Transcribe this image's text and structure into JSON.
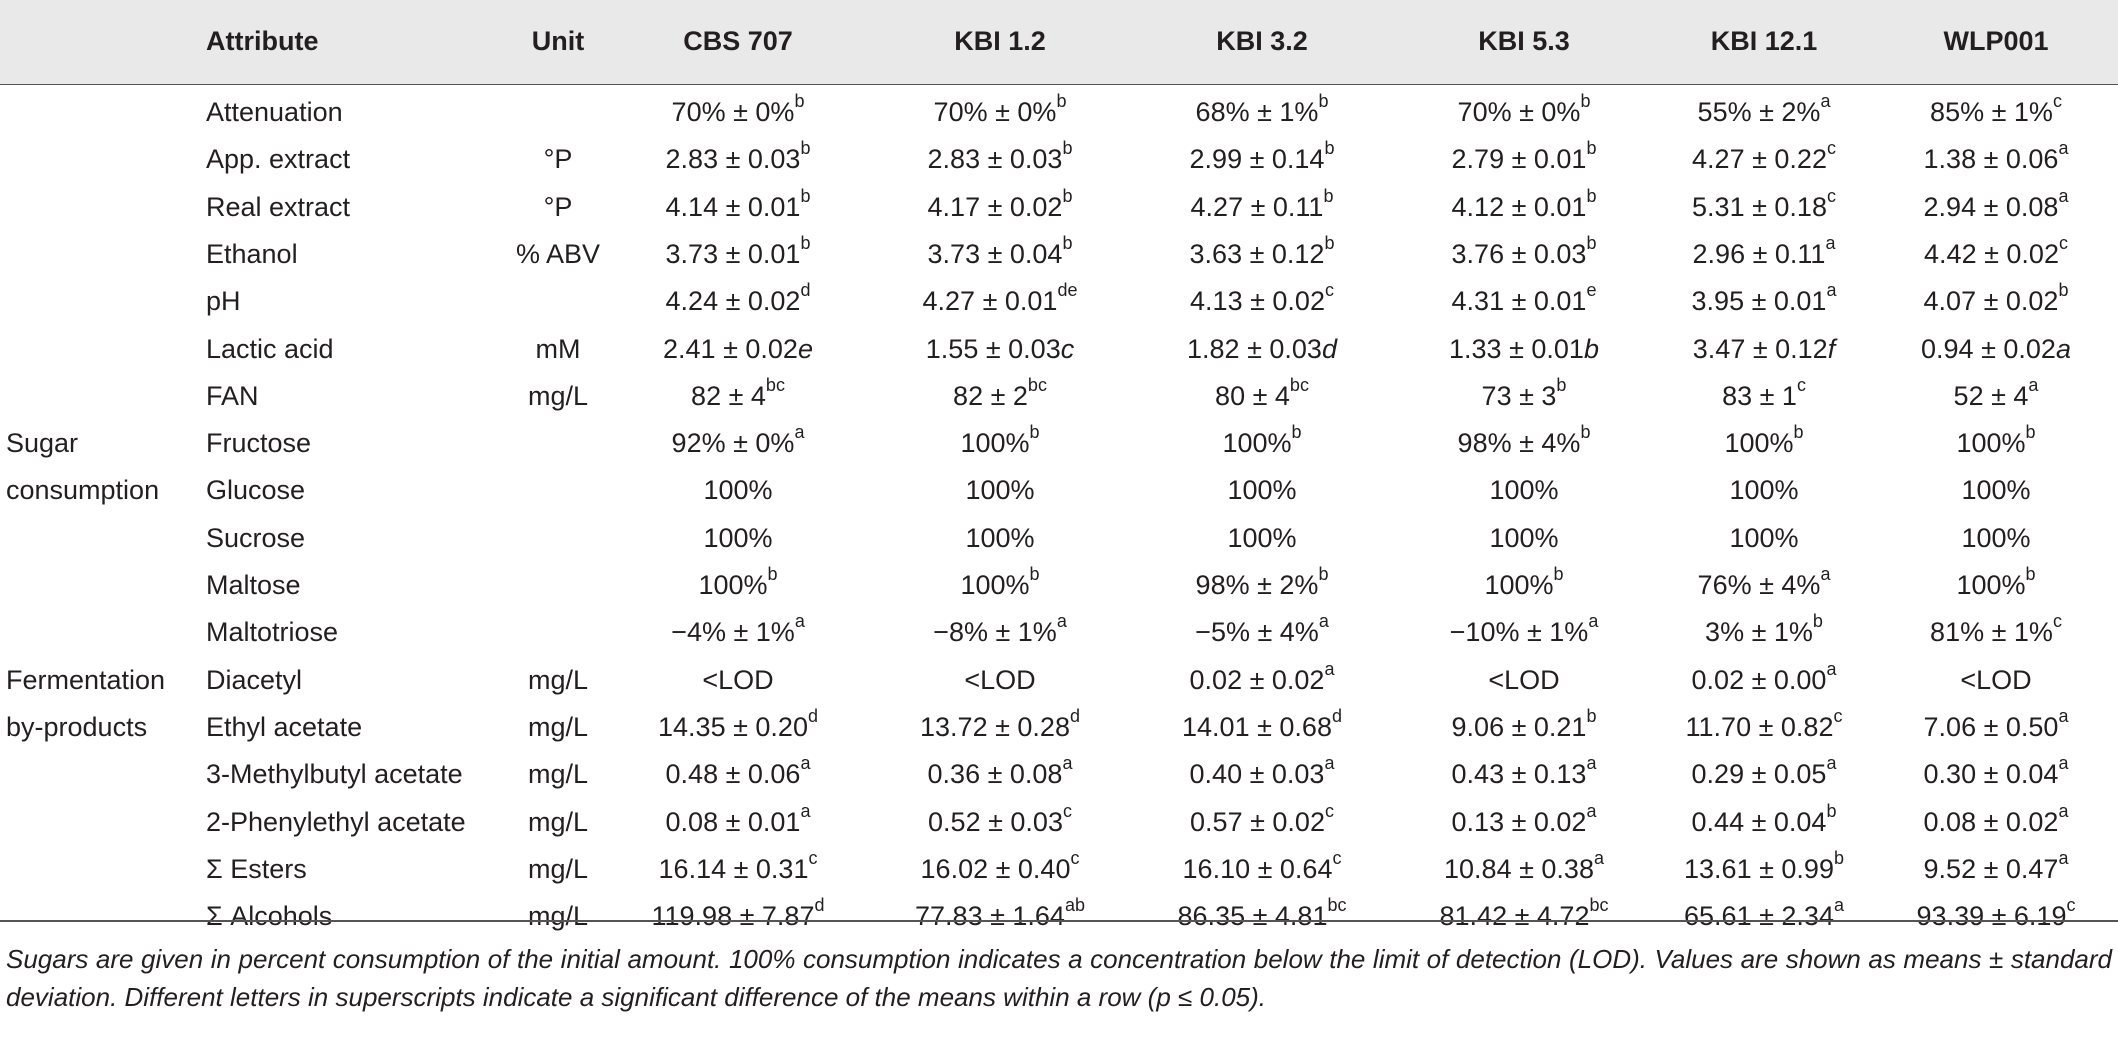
{
  "headers": [
    "Attribute",
    "Unit",
    "CBS 707",
    "KBI 1.2",
    "KBI 3.2",
    "KBI 5.3",
    "KBI 12.1",
    "WLP001"
  ],
  "rows": [
    {
      "group": "",
      "attr": "Attenuation",
      "unit": "",
      "cells": [
        [
          "70% ± 0%",
          "b"
        ],
        [
          "70% ± 0%",
          "b"
        ],
        [
          "68% ± 1%",
          "b"
        ],
        [
          "70% ± 0%",
          "b"
        ],
        [
          "55% ± 2%",
          "a"
        ],
        [
          "85% ± 1%",
          "c"
        ]
      ]
    },
    {
      "group": "",
      "attr": "App. extract",
      "unit": "°P",
      "cells": [
        [
          "2.83 ± 0.03",
          "b"
        ],
        [
          "2.83 ± 0.03",
          "b"
        ],
        [
          "2.99 ± 0.14",
          "b"
        ],
        [
          "2.79 ± 0.01",
          "b"
        ],
        [
          "4.27 ± 0.22",
          "c"
        ],
        [
          "1.38 ± 0.06",
          "a"
        ]
      ]
    },
    {
      "group": "",
      "attr": "Real extract",
      "unit": "°P",
      "cells": [
        [
          "4.14 ± 0.01",
          "b"
        ],
        [
          "4.17 ± 0.02",
          "b"
        ],
        [
          "4.27 ± 0.11",
          "b"
        ],
        [
          "4.12 ± 0.01",
          "b"
        ],
        [
          "5.31 ± 0.18",
          "c"
        ],
        [
          "2.94 ± 0.08",
          "a"
        ]
      ]
    },
    {
      "group": "",
      "attr": "Ethanol",
      "unit": "% ABV",
      "cells": [
        [
          "3.73 ± 0.01",
          "b"
        ],
        [
          "3.73 ± 0.04",
          "b"
        ],
        [
          "3.63 ± 0.12",
          "b"
        ],
        [
          "3.76 ± 0.03",
          "b"
        ],
        [
          "2.96 ± 0.11",
          "a"
        ],
        [
          "4.42 ± 0.02",
          "c"
        ]
      ]
    },
    {
      "group": "",
      "attr": "pH",
      "unit": "",
      "cells": [
        [
          "4.24 ± 0.02",
          "d"
        ],
        [
          "4.27 ± 0.01",
          "de"
        ],
        [
          "4.13 ± 0.02",
          "c"
        ],
        [
          "4.31 ± 0.01",
          "e"
        ],
        [
          "3.95 ± 0.01",
          "a"
        ],
        [
          "4.07 ± 0.02",
          "b"
        ]
      ]
    },
    {
      "group": "",
      "attr": "Lactic acid",
      "unit": "mM",
      "inline": true,
      "cells": [
        [
          "2.41 ± 0.02",
          "e"
        ],
        [
          "1.55 ± 0.03",
          "c"
        ],
        [
          "1.82 ± 0.03",
          "d"
        ],
        [
          "1.33 ± 0.01",
          "b"
        ],
        [
          "3.47 ± 0.12",
          "f"
        ],
        [
          "0.94 ± 0.02",
          "a"
        ]
      ]
    },
    {
      "group": "",
      "attr": "FAN",
      "unit": "mg/L",
      "cells": [
        [
          "82 ± 4",
          "bc"
        ],
        [
          "82 ± 2",
          "bc"
        ],
        [
          "80 ± 4",
          "bc"
        ],
        [
          "73 ± 3",
          "b"
        ],
        [
          "83 ± 1",
          "c"
        ],
        [
          "52 ± 4",
          "a"
        ]
      ]
    },
    {
      "group": "Sugar",
      "attr": "Fructose",
      "unit": "",
      "cells": [
        [
          "92% ± 0%",
          "a"
        ],
        [
          "100%",
          "b"
        ],
        [
          "100%",
          "b"
        ],
        [
          "98% ± 4%",
          "b"
        ],
        [
          "100%",
          "b"
        ],
        [
          "100%",
          "b"
        ]
      ]
    },
    {
      "group": "consumption",
      "attr": "Glucose",
      "unit": "",
      "cells": [
        [
          "100%",
          ""
        ],
        [
          "100%",
          ""
        ],
        [
          "100%",
          ""
        ],
        [
          "100%",
          ""
        ],
        [
          "100%",
          ""
        ],
        [
          "100%",
          ""
        ]
      ]
    },
    {
      "group": "",
      "attr": "Sucrose",
      "unit": "",
      "cells": [
        [
          "100%",
          ""
        ],
        [
          "100%",
          ""
        ],
        [
          "100%",
          ""
        ],
        [
          "100%",
          ""
        ],
        [
          "100%",
          ""
        ],
        [
          "100%",
          ""
        ]
      ]
    },
    {
      "group": "",
      "attr": "Maltose",
      "unit": "",
      "cells": [
        [
          "100%",
          "b"
        ],
        [
          "100%",
          "b"
        ],
        [
          "98% ± 2%",
          "b"
        ],
        [
          "100%",
          "b"
        ],
        [
          "76% ± 4%",
          "a"
        ],
        [
          "100%",
          "b"
        ]
      ]
    },
    {
      "group": "",
      "attr": "Maltotriose",
      "unit": "",
      "cells": [
        [
          "−4% ± 1%",
          "a"
        ],
        [
          "−8% ± 1%",
          "a"
        ],
        [
          "−5% ± 4%",
          "a"
        ],
        [
          "−10% ± 1%",
          "a"
        ],
        [
          "3% ± 1%",
          "b"
        ],
        [
          "81% ± 1%",
          "c"
        ]
      ]
    },
    {
      "group": "Fermentation",
      "attr": "Diacetyl",
      "unit": "mg/L",
      "cells": [
        [
          "<LOD",
          ""
        ],
        [
          "<LOD",
          ""
        ],
        [
          "0.02 ± 0.02",
          "a"
        ],
        [
          "<LOD",
          ""
        ],
        [
          "0.02 ± 0.00",
          "a"
        ],
        [
          "<LOD",
          ""
        ]
      ]
    },
    {
      "group": "by-products",
      "attr": "Ethyl acetate",
      "unit": "mg/L",
      "cells": [
        [
          "14.35 ± 0.20",
          "d"
        ],
        [
          "13.72 ± 0.28",
          "d"
        ],
        [
          "14.01 ± 0.68",
          "d"
        ],
        [
          "9.06 ± 0.21",
          "b"
        ],
        [
          "11.70 ± 0.82",
          "c"
        ],
        [
          "7.06 ± 0.50",
          "a"
        ]
      ]
    },
    {
      "group": "",
      "attr": "3-Methylbutyl acetate",
      "unit": "mg/L",
      "cells": [
        [
          "0.48 ± 0.06",
          "a"
        ],
        [
          "0.36 ± 0.08",
          "a"
        ],
        [
          "0.40 ± 0.03",
          "a"
        ],
        [
          "0.43 ± 0.13",
          "a"
        ],
        [
          "0.29 ± 0.05",
          "a"
        ],
        [
          "0.30 ± 0.04",
          "a"
        ]
      ]
    },
    {
      "group": "",
      "attr": "2-Phenylethyl acetate",
      "unit": "mg/L",
      "cells": [
        [
          "0.08 ± 0.01",
          "a"
        ],
        [
          "0.52 ± 0.03",
          "c"
        ],
        [
          "0.57 ± 0.02",
          "c"
        ],
        [
          "0.13 ± 0.02",
          "a"
        ],
        [
          "0.44 ± 0.04",
          "b"
        ],
        [
          "0.08 ± 0.02",
          "a"
        ]
      ]
    },
    {
      "group": "",
      "attr": "Σ Esters",
      "unit": "mg/L",
      "cells": [
        [
          "16.14 ± 0.31",
          "c"
        ],
        [
          "16.02 ± 0.40",
          "c"
        ],
        [
          "16.10 ± 0.64",
          "c"
        ],
        [
          "10.84 ± 0.38",
          "a"
        ],
        [
          "13.61 ± 0.99",
          "b"
        ],
        [
          "9.52 ± 0.47",
          "a"
        ]
      ]
    },
    {
      "group": "",
      "attr": "Σ Alcohols",
      "unit": "mg/L",
      "cells": [
        [
          "119.98 ± 7.87",
          "d"
        ],
        [
          "77.83 ± 1.64",
          "ab"
        ],
        [
          "86.35 ± 4.81",
          "bc"
        ],
        [
          "81.42 ± 4.72",
          "bc"
        ],
        [
          "65.61 ± 2.34",
          "a"
        ],
        [
          "93.39 ± 6.19",
          "c"
        ]
      ]
    }
  ],
  "footnote": "Sugars are given in percent consumption of the initial amount. 100% consumption indicates a concentration below the limit of detection (LOD). Values are shown as means ± standard deviation. Different letters in superscripts indicate a significant difference of the means within a row (p ≤ 0.05)."
}
